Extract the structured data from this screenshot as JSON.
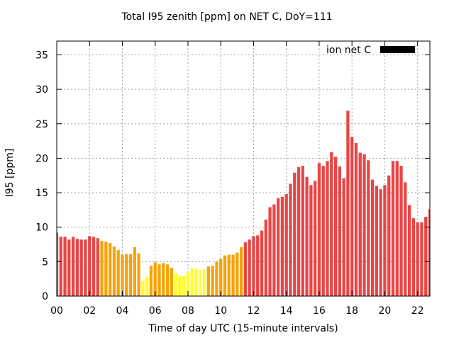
{
  "chart_data": {
    "type": "bar",
    "title": "Total I95 zenith [ppm] on NET C, DoY=111",
    "xlabel": "Time of day UTC (15-minute intervals)",
    "ylabel": "I95 [ppm]",
    "ylim": [
      0,
      37
    ],
    "yticks": [
      0,
      5,
      10,
      15,
      20,
      25,
      30,
      35
    ],
    "xlim": [
      0,
      22.75
    ],
    "xticks": [
      0,
      2,
      4,
      6,
      8,
      10,
      12,
      14,
      16,
      18,
      20,
      22
    ],
    "xtick_labels": [
      "00",
      "02",
      "04",
      "06",
      "08",
      "10",
      "12",
      "14",
      "16",
      "18",
      "20",
      "22"
    ],
    "grid": true,
    "legend": {
      "position": "top-right",
      "entries": [
        {
          "label": "ion net C",
          "color": "#000000"
        }
      ]
    },
    "interval_hours": 0.25,
    "color_scale": {
      "high": "#e84646",
      "medium": "#f5a30a",
      "low": "#ffff2a"
    },
    "series": [
      {
        "name": "ion net C",
        "values": [
          9.2,
          8.6,
          8.6,
          8.2,
          8.6,
          8.3,
          8.2,
          8.2,
          8.7,
          8.6,
          8.4,
          8.0,
          7.9,
          7.7,
          7.2,
          6.7,
          6.0,
          6.1,
          6.1,
          7.1,
          6.2,
          2.2,
          2.8,
          4.4,
          4.9,
          4.6,
          4.8,
          4.6,
          4.1,
          3.3,
          2.9,
          2.9,
          3.5,
          4.0,
          4.0,
          3.8,
          3.9,
          4.3,
          4.4,
          5.0,
          5.4,
          5.9,
          6.0,
          6.0,
          6.3,
          7.1,
          7.8,
          8.2,
          8.7,
          8.8,
          9.5,
          11.1,
          12.9,
          13.3,
          14.2,
          14.4,
          14.8,
          16.3,
          17.9,
          18.7,
          18.9,
          17.3,
          16.1,
          16.7,
          19.3,
          18.9,
          19.6,
          20.9,
          20.2,
          18.8,
          17.1,
          26.9,
          23.1,
          22.2,
          20.8,
          20.6,
          19.7,
          16.9,
          16.0,
          15.5,
          16.1,
          17.5,
          19.6,
          19.6,
          18.9,
          16.5,
          13.2,
          11.3,
          10.7,
          10.7,
          11.5,
          12.6
        ],
        "colors": [
          "high",
          "high",
          "high",
          "high",
          "high",
          "high",
          "high",
          "high",
          "high",
          "high",
          "high",
          "medium",
          "medium",
          "medium",
          "medium",
          "medium",
          "medium",
          "medium",
          "medium",
          "medium",
          "medium",
          "low",
          "low",
          "medium",
          "medium",
          "medium",
          "medium",
          "medium",
          "medium",
          "low",
          "low",
          "low",
          "low",
          "low",
          "low",
          "low",
          "low",
          "medium",
          "medium",
          "medium",
          "medium",
          "medium",
          "medium",
          "medium",
          "medium",
          "medium",
          "high",
          "high",
          "high",
          "high",
          "high",
          "high",
          "high",
          "high",
          "high",
          "high",
          "high",
          "high",
          "high",
          "high",
          "high",
          "high",
          "high",
          "high",
          "high",
          "high",
          "high",
          "high",
          "high",
          "high",
          "high",
          "high",
          "high",
          "high",
          "high",
          "high",
          "high",
          "high",
          "high",
          "high",
          "high",
          "high",
          "high",
          "high",
          "high",
          "high",
          "high",
          "high",
          "high",
          "high",
          "high",
          "high"
        ]
      }
    ]
  }
}
